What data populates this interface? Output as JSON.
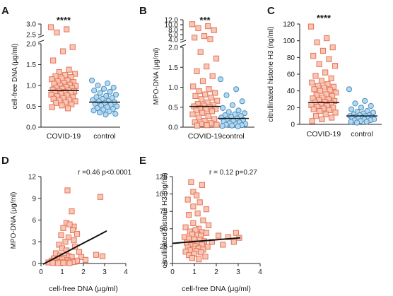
{
  "colors": {
    "covid": "#e8735a",
    "covid_fill": "#f6c7b4",
    "control": "#4a90c2",
    "control_fill": "#b5d8ee",
    "line": "#111111"
  },
  "chart_data": [
    {
      "panel": "A",
      "type": "scatter",
      "ylabel": "cell-free DNA (μg/ml)",
      "categories": [
        "COVID-19",
        "control"
      ],
      "significance": "****",
      "yticks": [
        "0.0",
        "0.5",
        "1.0",
        "1.5",
        "2.0",
        "2.5",
        "3.0"
      ],
      "axis_break": [
        2.0,
        2.5
      ],
      "series": [
        {
          "category": "COVID-19",
          "median": 0.88,
          "values": [
            2.85,
            2.75,
            2.6,
            1.92,
            1.82,
            1.6,
            1.38,
            1.32,
            1.28,
            1.25,
            1.22,
            1.2,
            1.17,
            1.15,
            1.12,
            1.1,
            1.08,
            1.06,
            1.04,
            1.02,
            1.0,
            0.99,
            0.97,
            0.95,
            0.93,
            0.92,
            0.9,
            0.88,
            0.87,
            0.86,
            0.84,
            0.83,
            0.82,
            0.8,
            0.78,
            0.76,
            0.74,
            0.72,
            0.7,
            0.68,
            0.66,
            0.64,
            0.62,
            0.6,
            0.58,
            0.55,
            0.52,
            0.48,
            0.45
          ]
        },
        {
          "category": "control",
          "median": 0.6,
          "values": [
            1.12,
            1.05,
            1.0,
            0.95,
            0.92,
            0.88,
            0.85,
            0.82,
            0.78,
            0.75,
            0.72,
            0.7,
            0.68,
            0.65,
            0.63,
            0.62,
            0.6,
            0.58,
            0.56,
            0.54,
            0.52,
            0.5,
            0.48,
            0.46,
            0.44,
            0.42,
            0.4,
            0.38,
            0.35,
            0.32,
            0.3
          ]
        }
      ]
    },
    {
      "panel": "B",
      "type": "scatter",
      "ylabel": "MPO-DNA (μg/ml)",
      "categories": [
        "COVID-19",
        "control"
      ],
      "significance": "***",
      "yticks": [
        "0.0",
        "0.5",
        "1.0",
        "1.5",
        "2.0",
        "4.0",
        "6.0",
        "8.0",
        "10.0",
        "12.0"
      ],
      "axis_break": [
        2.0,
        4.0
      ],
      "series": [
        {
          "category": "COVID-19",
          "median": 0.52,
          "values": [
            10.2,
            9.4,
            8.6,
            7.8,
            5.4,
            4.8,
            4.2,
            1.88,
            1.72,
            1.52,
            1.4,
            1.28,
            1.15,
            1.02,
            0.95,
            0.9,
            0.86,
            0.82,
            0.78,
            0.74,
            0.7,
            0.66,
            0.62,
            0.58,
            0.56,
            0.54,
            0.52,
            0.5,
            0.48,
            0.46,
            0.44,
            0.42,
            0.4,
            0.36,
            0.32,
            0.28,
            0.24,
            0.2,
            0.16,
            0.12,
            0.1,
            0.08,
            0.06,
            0.05,
            0.04
          ]
        },
        {
          "category": "control",
          "median": 0.22,
          "values": [
            1.2,
            0.95,
            0.8,
            0.65,
            0.55,
            0.48,
            0.42,
            0.38,
            0.35,
            0.32,
            0.3,
            0.28,
            0.26,
            0.24,
            0.22,
            0.2,
            0.18,
            0.16,
            0.14,
            0.12,
            0.1,
            0.08,
            0.07,
            0.06,
            0.05,
            0.04,
            0.03,
            0.02
          ]
        }
      ]
    },
    {
      "panel": "C",
      "type": "scatter",
      "ylabel": "citrullinated histone H3 (ng/ml)",
      "categories": [
        "COVID-19",
        "control"
      ],
      "significance": "****",
      "yticks": [
        "0",
        "20",
        "40",
        "60",
        "80",
        "100",
        "120"
      ],
      "series": [
        {
          "category": "COVID-19",
          "median": 26,
          "values": [
            117,
            103,
            98,
            92,
            88,
            82,
            78,
            72,
            70,
            62,
            58,
            55,
            52,
            50,
            48,
            46,
            45,
            44,
            42,
            41,
            40,
            38,
            36,
            35,
            34,
            32,
            31,
            30,
            29,
            28,
            27,
            26,
            25,
            24,
            23,
            22,
            21,
            20,
            19,
            18,
            17,
            16,
            14,
            12,
            10,
            8,
            6,
            4
          ]
        },
        {
          "category": "control",
          "median": 10,
          "values": [
            42,
            28,
            25,
            22,
            20,
            18,
            16,
            15,
            14,
            13,
            12,
            11,
            11,
            10,
            10,
            9,
            9,
            8,
            8,
            7,
            7,
            6,
            6,
            5,
            5,
            4,
            3,
            3,
            2
          ]
        }
      ]
    },
    {
      "panel": "D",
      "type": "scatter",
      "xlabel": "cell-free DNA (μg/ml)",
      "ylabel": "MPO-DNA (μg/ml)",
      "xlim": [
        0,
        4
      ],
      "ylim": [
        0,
        12
      ],
      "xticks": [
        "0",
        "1",
        "2",
        "3",
        "4"
      ],
      "yticks": [
        "0",
        "3",
        "6",
        "9",
        "12"
      ],
      "stat": "r =0.46  p<0.0001",
      "regression": {
        "x": [
          0.1,
          3.1
        ],
        "y": [
          -0.1,
          4.5
        ]
      },
      "points": [
        [
          1.25,
          10.1
        ],
        [
          2.8,
          9.2
        ],
        [
          1.45,
          7.2
        ],
        [
          1.55,
          5.1
        ],
        [
          1.2,
          5.6
        ],
        [
          1.35,
          5.4
        ],
        [
          1.05,
          4.9
        ],
        [
          1.5,
          4.6
        ],
        [
          1.7,
          4.1
        ],
        [
          0.95,
          3.9
        ],
        [
          1.3,
          3.6
        ],
        [
          1.55,
          3.2
        ],
        [
          1.15,
          3.0
        ],
        [
          0.85,
          2.6
        ],
        [
          1.6,
          2.3
        ],
        [
          1.0,
          2.1
        ],
        [
          1.2,
          1.8
        ],
        [
          1.8,
          1.6
        ],
        [
          0.7,
          1.4
        ],
        [
          0.9,
          1.1
        ],
        [
          1.3,
          1.0
        ],
        [
          1.45,
          0.9
        ],
        [
          1.1,
          0.8
        ],
        [
          0.6,
          0.7
        ],
        [
          0.8,
          0.6
        ],
        [
          1.0,
          0.55
        ],
        [
          1.25,
          0.45
        ],
        [
          0.5,
          0.4
        ],
        [
          0.75,
          0.3
        ],
        [
          1.4,
          0.3
        ],
        [
          1.6,
          0.25
        ],
        [
          0.9,
          0.2
        ],
        [
          1.15,
          0.15
        ],
        [
          0.65,
          0.12
        ],
        [
          2.9,
          1.0
        ],
        [
          2.6,
          1.2
        ],
        [
          1.9,
          0.9
        ],
        [
          2.1,
          0.5
        ],
        [
          1.7,
          0.4
        ],
        [
          1.5,
          0.2
        ],
        [
          0.35,
          0.15
        ],
        [
          0.55,
          0.1
        ],
        [
          1.05,
          0.1
        ],
        [
          1.35,
          0.05
        ],
        [
          0.8,
          0.05
        ]
      ]
    },
    {
      "panel": "E",
      "type": "scatter",
      "xlabel": "cell-free DNA (μg/ml)",
      "ylabel": "citrullinated histone H3 (ng/ml)",
      "xlim": [
        0,
        4
      ],
      "ylim": [
        0,
        125
      ],
      "xticks": [
        "0",
        "1",
        "2",
        "3",
        "4"
      ],
      "yticks": [
        "0",
        "25",
        "50",
        "75",
        "100",
        "125"
      ],
      "stat": "r = 0.12  p=0.27",
      "regression": {
        "x": [
          0.0,
          3.1
        ],
        "y": [
          29,
          37
        ]
      },
      "points": [
        [
          0.85,
          117
        ],
        [
          1.35,
          113
        ],
        [
          0.95,
          103
        ],
        [
          1.1,
          98
        ],
        [
          0.7,
          92
        ],
        [
          1.25,
          88
        ],
        [
          0.95,
          82
        ],
        [
          1.55,
          78
        ],
        [
          1.15,
          72
        ],
        [
          0.75,
          70
        ],
        [
          1.4,
          62
        ],
        [
          0.95,
          58
        ],
        [
          1.65,
          55
        ],
        [
          0.6,
          52
        ],
        [
          1.2,
          50
        ],
        [
          1.05,
          48
        ],
        [
          0.8,
          46
        ],
        [
          1.35,
          45
        ],
        [
          1.55,
          44
        ],
        [
          0.9,
          42
        ],
        [
          1.15,
          41
        ],
        [
          1.3,
          40
        ],
        [
          0.55,
          38
        ],
        [
          0.75,
          36
        ],
        [
          1.0,
          35
        ],
        [
          1.25,
          34
        ],
        [
          1.45,
          32
        ],
        [
          1.8,
          31
        ],
        [
          0.65,
          30
        ],
        [
          0.95,
          29
        ],
        [
          1.15,
          28
        ],
        [
          1.35,
          27
        ],
        [
          0.85,
          26
        ],
        [
          1.05,
          25
        ],
        [
          1.6,
          24
        ],
        [
          0.7,
          23
        ],
        [
          1.2,
          22
        ],
        [
          0.95,
          21
        ],
        [
          1.4,
          20
        ],
        [
          0.8,
          19
        ],
        [
          1.1,
          18
        ],
        [
          0.6,
          17
        ],
        [
          1.3,
          16
        ],
        [
          1.0,
          14
        ],
        [
          0.75,
          12
        ],
        [
          1.5,
          10
        ],
        [
          0.9,
          8
        ],
        [
          1.2,
          6
        ],
        [
          2.9,
          44
        ],
        [
          2.1,
          40
        ],
        [
          2.55,
          38
        ],
        [
          3.05,
          37
        ],
        [
          2.8,
          31
        ],
        [
          2.3,
          27
        ]
      ]
    }
  ]
}
